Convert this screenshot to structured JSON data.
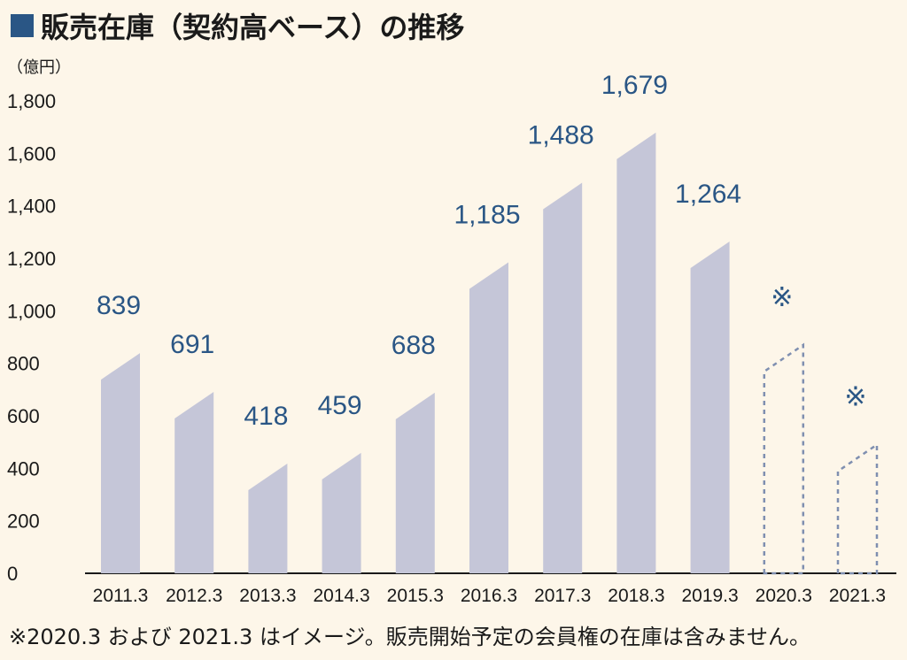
{
  "title": "販売在庫（契約高ベース）の推移",
  "footnote": "※2020.3 および 2021.3 はイメージ。販売開始予定の会員権の在庫は含みません。",
  "colors": {
    "bar_fill": "#c5c6d8",
    "accent_blue": "#2a5685",
    "dashed_outline": "#7f8fb0",
    "background": "#fdf6e9",
    "axis": "#1a1a1a"
  },
  "chart_data": {
    "type": "bar",
    "ylabel": "（億円）",
    "ylim": [
      0,
      1800
    ],
    "yticks": [
      0,
      200,
      400,
      600,
      800,
      1000,
      1200,
      1400,
      1600,
      1800
    ],
    "ytick_labels": [
      "0",
      "200",
      "400",
      "600",
      "800",
      "1,000",
      "1,200",
      "1,400",
      "1,600",
      "1,800"
    ],
    "categories": [
      "2011.3",
      "2012.3",
      "2013.3",
      "2014.3",
      "2015.3",
      "2016.3",
      "2017.3",
      "2018.3",
      "2019.3",
      "2020.3",
      "2021.3"
    ],
    "values": [
      839,
      691,
      418,
      459,
      688,
      1185,
      1488,
      1679,
      1264,
      870,
      490
    ],
    "value_labels": [
      "839",
      "691",
      "418",
      "459",
      "688",
      "1,185",
      "1,488",
      "1,679",
      "1,264",
      "※",
      "※"
    ],
    "projected": [
      false,
      false,
      false,
      false,
      false,
      false,
      false,
      false,
      false,
      true,
      true
    ],
    "grid": false
  }
}
